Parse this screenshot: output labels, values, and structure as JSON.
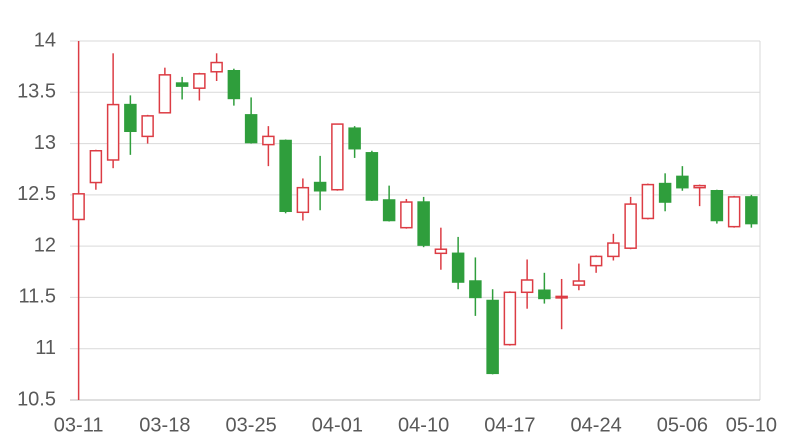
{
  "chart_data": {
    "type": "candlestick",
    "categories": [
      "03-11",
      null,
      null,
      null,
      null,
      "03-18",
      null,
      null,
      null,
      null,
      "03-25",
      null,
      null,
      null,
      null,
      "04-01",
      null,
      null,
      null,
      null,
      "04-10",
      null,
      null,
      null,
      null,
      "04-17",
      null,
      null,
      null,
      null,
      "04-24",
      null,
      null,
      null,
      null,
      "05-06",
      null,
      null,
      null,
      "05-10"
    ],
    "open": [
      12.26,
      12.62,
      12.84,
      13.38,
      13.07,
      13.3,
      13.59,
      13.54,
      13.7,
      13.71,
      13.28,
      12.99,
      13.03,
      12.33,
      12.62,
      12.55,
      13.15,
      12.91,
      12.45,
      12.18,
      12.43,
      11.93,
      11.93,
      11.66,
      11.47,
      11.04,
      11.55,
      11.57,
      11.5,
      11.62,
      11.81,
      11.9,
      11.98,
      12.27,
      12.61,
      12.68,
      12.57,
      12.54,
      12.19,
      12.48
    ],
    "high": [
      14.0,
      12.94,
      13.88,
      13.47,
      13.28,
      13.74,
      13.65,
      13.69,
      13.88,
      13.73,
      13.45,
      13.17,
      13.04,
      12.66,
      12.88,
      13.19,
      13.17,
      12.93,
      12.59,
      12.46,
      12.48,
      12.18,
      12.09,
      11.89,
      11.58,
      11.56,
      11.87,
      11.74,
      11.68,
      11.83,
      11.91,
      12.12,
      12.48,
      12.61,
      12.71,
      12.78,
      12.6,
      12.55,
      12.49,
      12.5
    ],
    "low": [
      10.5,
      12.55,
      12.76,
      12.89,
      13.0,
      13.3,
      13.43,
      13.42,
      13.61,
      13.37,
      13.0,
      12.78,
      12.32,
      12.25,
      12.35,
      12.54,
      12.86,
      12.44,
      12.24,
      12.17,
      11.99,
      11.77,
      11.58,
      11.32,
      10.75,
      11.03,
      11.39,
      11.44,
      11.19,
      11.57,
      11.74,
      11.86,
      11.97,
      12.26,
      12.34,
      12.54,
      12.39,
      12.22,
      12.18,
      12.18
    ],
    "close": [
      12.51,
      12.93,
      13.38,
      13.12,
      13.27,
      13.67,
      13.56,
      13.68,
      13.79,
      13.44,
      13.01,
      13.07,
      12.34,
      12.57,
      12.54,
      13.19,
      12.95,
      12.45,
      12.25,
      12.43,
      12.01,
      11.97,
      11.65,
      11.5,
      10.76,
      11.55,
      11.67,
      11.49,
      11.51,
      11.66,
      11.9,
      12.03,
      12.41,
      12.6,
      12.43,
      12.57,
      12.59,
      12.25,
      12.48,
      12.22
    ],
    "up_color": "#dc3c44",
    "down_color": "#2f9e3c",
    "ylim": [
      10.5,
      14
    ],
    "yticks": [
      10.5,
      11,
      11.5,
      12,
      12.5,
      13,
      13.5,
      14
    ],
    "grid": true
  }
}
